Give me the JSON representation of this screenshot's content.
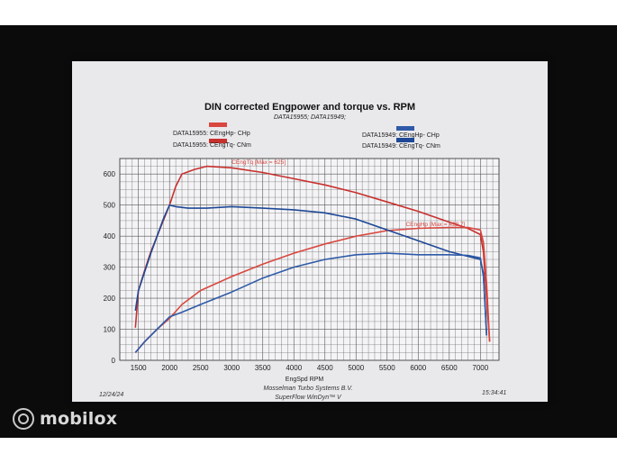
{
  "watermark": {
    "text": "mobilox",
    "icon": "mobilox-logo-icon"
  },
  "sheet": {
    "title": "DIN corrected Engpower and torque vs. RPM",
    "subtitle": "DATA15955; DATA15949;",
    "date": "12/24/24",
    "time": "15:34:41",
    "footer_line1": "Mosselman Turbo Systems B.V.",
    "footer_line2": "SuperFlow WinDyn™ V"
  },
  "legend": [
    {
      "label": "DATA15955: CEngHp-  CHp",
      "color": "#d9473f"
    },
    {
      "label": "DATA15955: CEngTq-  CNm",
      "color": "#c8302d"
    },
    {
      "label": "DATA15949: CEngHp-  CHp",
      "color": "#2f5aa8"
    },
    {
      "label": "DATA15949: CEngTq-  CNm",
      "color": "#1e4896"
    }
  ],
  "chart_data": {
    "type": "line",
    "title": "DIN corrected Engpower and torque vs. RPM",
    "xlabel": "EngSpd  RPM",
    "ylabel": "",
    "xlim": [
      1200,
      7300
    ],
    "ylim": [
      0,
      650
    ],
    "x_ticks": [
      1500,
      2000,
      2500,
      3000,
      3500,
      4000,
      4500,
      5000,
      5500,
      6000,
      6500,
      7000
    ],
    "y_ticks": [
      0,
      100,
      200,
      300,
      400,
      500,
      600
    ],
    "grid": true,
    "annotations": [
      {
        "text": "CEngTq [Max = 625]",
        "x": 3000,
        "y": 633,
        "color": "#d9473f"
      },
      {
        "text": "CEngHp [Max = 428.7]",
        "x": 5800,
        "y": 433,
        "color": "#d9473f"
      }
    ],
    "series": [
      {
        "name": "DATA15955: CEngTq-  CNm",
        "color": "#c8302d",
        "x": [
          1450,
          1500,
          1600,
          1700,
          1800,
          1900,
          2000,
          2100,
          2200,
          2400,
          2600,
          3000,
          3500,
          4000,
          4500,
          5000,
          5500,
          6000,
          6500,
          6800,
          7000,
          7050,
          7100,
          7150
        ],
        "y": [
          105,
          225,
          290,
          350,
          400,
          450,
          500,
          560,
          600,
          615,
          625,
          620,
          605,
          585,
          565,
          540,
          510,
          480,
          445,
          425,
          405,
          350,
          200,
          60
        ]
      },
      {
        "name": "DATA15955: CEngHp-  CHp",
        "color": "#d9473f",
        "x": [
          1450,
          1600,
          1800,
          2000,
          2200,
          2500,
          3000,
          3500,
          4000,
          4500,
          5000,
          5500,
          6000,
          6500,
          6800,
          7000,
          7050,
          7100,
          7150
        ],
        "y": [
          25,
          60,
          100,
          135,
          180,
          225,
          270,
          310,
          345,
          375,
          400,
          418,
          425,
          428,
          428,
          420,
          380,
          250,
          60
        ]
      },
      {
        "name": "DATA15949: CEngTq-  CNm",
        "color": "#1e4896",
        "x": [
          1450,
          1500,
          1600,
          1700,
          1800,
          1900,
          2000,
          2100,
          2300,
          2600,
          3000,
          3500,
          4000,
          4500,
          5000,
          5500,
          6000,
          6500,
          6800,
          7000,
          7050,
          7100
        ],
        "y": [
          160,
          225,
          285,
          345,
          400,
          455,
          500,
          495,
          490,
          490,
          495,
          490,
          485,
          475,
          455,
          420,
          385,
          350,
          335,
          325,
          280,
          80
        ]
      },
      {
        "name": "DATA15949: CEngHp-  CHp",
        "color": "#2f5aa8",
        "x": [
          1450,
          1600,
          1800,
          2000,
          2200,
          2500,
          3000,
          3500,
          4000,
          4500,
          5000,
          5500,
          6000,
          6500,
          6800,
          7000,
          7050,
          7100
        ],
        "y": [
          25,
          60,
          100,
          140,
          155,
          180,
          220,
          265,
          300,
          325,
          340,
          345,
          340,
          340,
          338,
          330,
          270,
          90
        ]
      }
    ]
  }
}
